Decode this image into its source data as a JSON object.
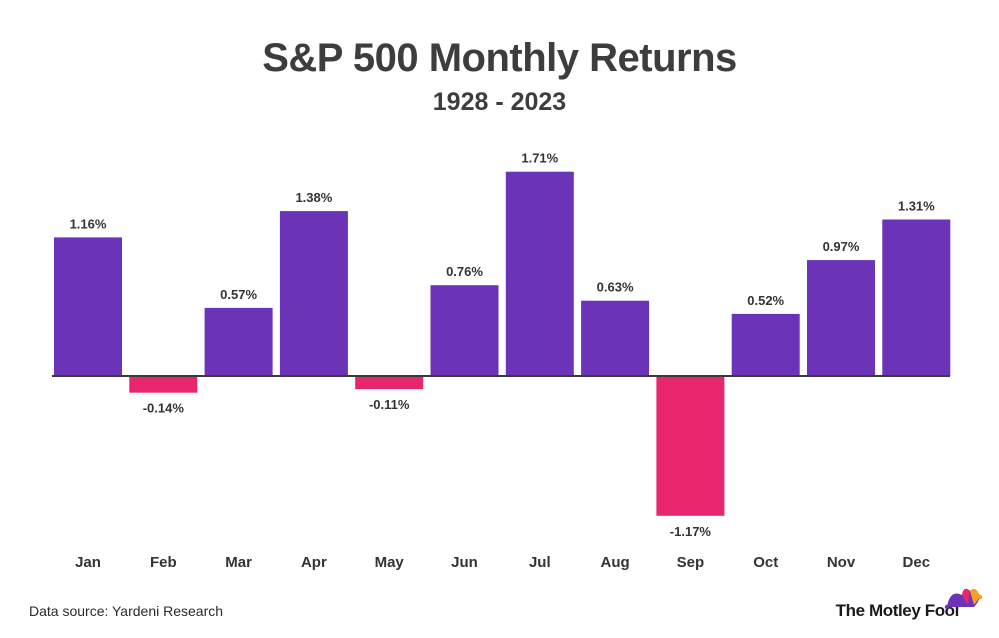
{
  "header": {
    "title": "S&P 500 Monthly Returns",
    "subtitle": "1928 - 2023"
  },
  "footer": {
    "source": "Data source: Yardeni Research",
    "brand": "The Motley Fool",
    "logo_icon": "jester-hat-icon"
  },
  "colors": {
    "positive": "#6a33b8",
    "negative": "#e8266e",
    "axis": "#3a3a3a"
  },
  "chart_data": {
    "type": "bar",
    "title": "S&P 500 Monthly Returns",
    "subtitle": "1928 - 2023",
    "categories": [
      "Jan",
      "Feb",
      "Mar",
      "Apr",
      "May",
      "Jun",
      "Jul",
      "Aug",
      "Sep",
      "Oct",
      "Nov",
      "Dec"
    ],
    "values": [
      1.16,
      -0.14,
      0.57,
      1.38,
      -0.11,
      0.76,
      1.71,
      0.63,
      -1.17,
      0.52,
      0.97,
      1.31
    ],
    "labels": [
      "1.16%",
      "-0.14%",
      "0.57%",
      "1.38%",
      "-0.11%",
      "0.76%",
      "1.71%",
      "0.63%",
      "-1.17%",
      "0.52%",
      "0.97%",
      "1.31%"
    ],
    "xlabel": "",
    "ylabel": "",
    "unit": "%",
    "grid": false,
    "legend": "none"
  }
}
